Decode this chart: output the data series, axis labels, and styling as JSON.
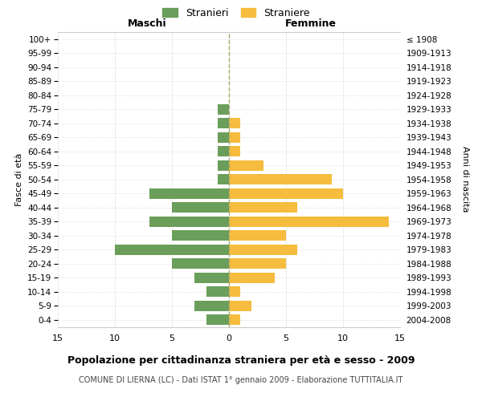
{
  "age_groups": [
    "100+",
    "95-99",
    "90-94",
    "85-89",
    "80-84",
    "75-79",
    "70-74",
    "65-69",
    "60-64",
    "55-59",
    "50-54",
    "45-49",
    "40-44",
    "35-39",
    "30-34",
    "25-29",
    "20-24",
    "15-19",
    "10-14",
    "5-9",
    "0-4"
  ],
  "birth_years": [
    "≤ 1908",
    "1909-1913",
    "1914-1918",
    "1919-1923",
    "1924-1928",
    "1929-1933",
    "1934-1938",
    "1939-1943",
    "1944-1948",
    "1949-1953",
    "1954-1958",
    "1959-1963",
    "1964-1968",
    "1969-1973",
    "1974-1978",
    "1979-1983",
    "1984-1988",
    "1989-1993",
    "1994-1998",
    "1999-2003",
    "2004-2008"
  ],
  "maschi": [
    0,
    0,
    0,
    0,
    0,
    1,
    1,
    1,
    1,
    1,
    1,
    7,
    5,
    7,
    5,
    10,
    5,
    3,
    2,
    3,
    2
  ],
  "femmine": [
    0,
    0,
    0,
    0,
    0,
    0,
    1,
    1,
    1,
    3,
    9,
    10,
    6,
    14,
    5,
    6,
    5,
    4,
    1,
    2,
    1
  ],
  "color_maschi": "#6a9e5a",
  "color_femmine": "#f5bc3e",
  "title": "Popolazione per cittadinanza straniera per età e sesso - 2009",
  "subtitle": "COMUNE DI LIERNA (LC) - Dati ISTAT 1° gennaio 2009 - Elaborazione TUTTITALIA.IT",
  "xlabel_left": "Maschi",
  "xlabel_right": "Femmine",
  "ylabel_left": "Fasce di età",
  "ylabel_right": "Anni di nascita",
  "legend_maschi": "Stranieri",
  "legend_femmine": "Straniere",
  "xlim": 15,
  "background_color": "#ffffff",
  "grid_color": "#cccccc"
}
